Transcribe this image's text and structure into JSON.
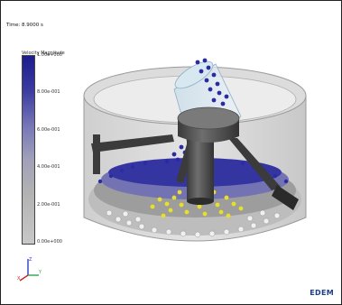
{
  "viewport": {
    "time_label": "Time: 8.9000 s",
    "legend": {
      "title": "Velocity Magnitude",
      "ticks": [
        "1.00e+000",
        "8.00e-001",
        "6.00e-001",
        "4.00e-001",
        "2.00e-001",
        "0.00e+000"
      ],
      "colors": {
        "high": "#1c1c8e",
        "low": "#c8c8c8"
      }
    },
    "axes": {
      "x_label": "X",
      "y_label": "Y",
      "z_label": "Z"
    },
    "brand": "EDEM",
    "highlight_color": "#e8e020"
  }
}
